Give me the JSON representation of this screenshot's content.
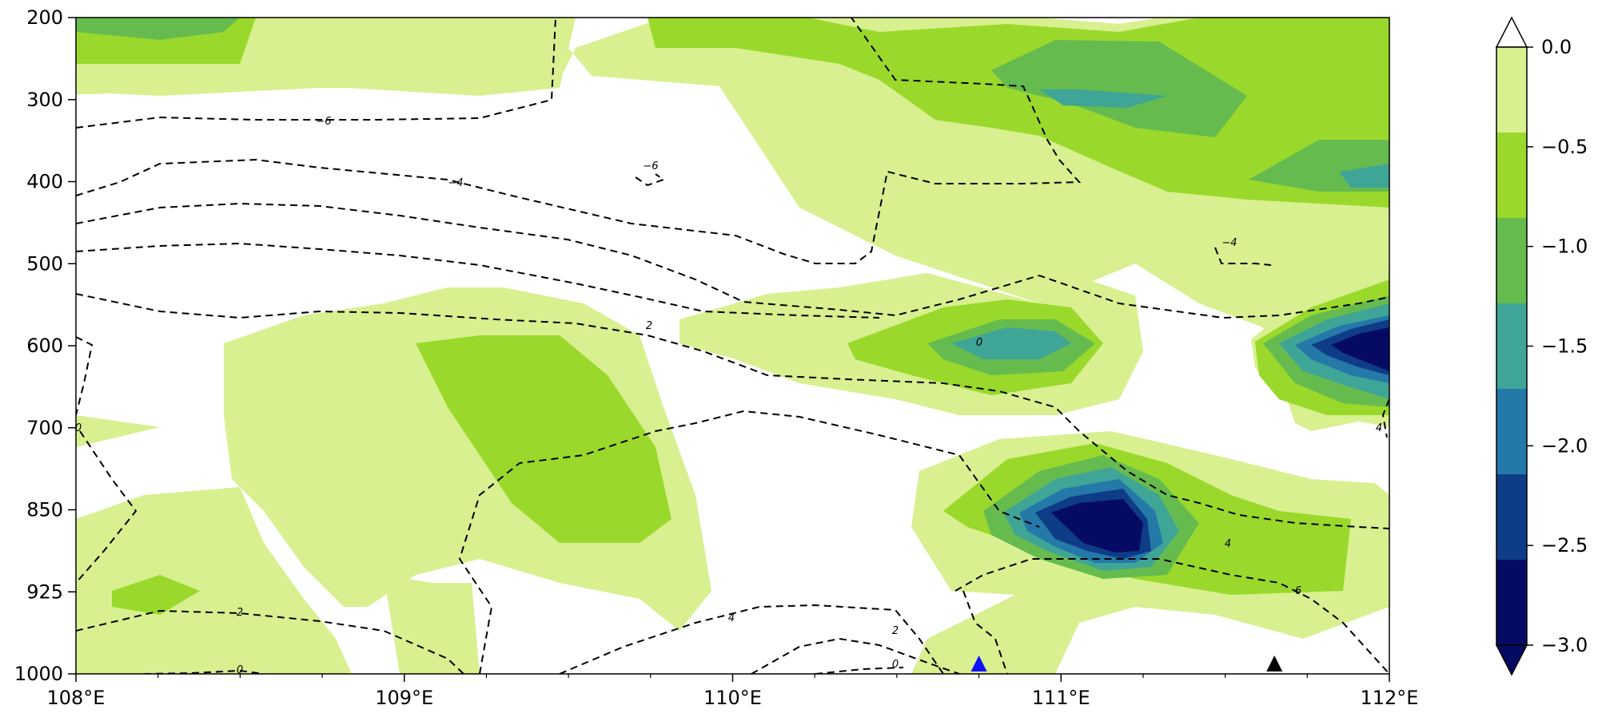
{
  "chart_data": {
    "type": "heatmap",
    "title": "",
    "xlabel": "",
    "ylabel": "",
    "x_axis": {
      "range": [
        108,
        112
      ],
      "ticks": [
        108,
        109,
        110,
        111,
        112
      ],
      "tick_labels": [
        "108°E",
        "109°E",
        "110°E",
        "111°E",
        "112°E"
      ]
    },
    "y_axis": {
      "scale": "category",
      "inverted": true,
      "tick_labels": [
        "200",
        "300",
        "400",
        "500",
        "600",
        "700",
        "850",
        "925",
        "1000"
      ]
    },
    "filled_contours": {
      "levels": [
        0.0,
        -0.5,
        -1.0,
        -1.5,
        -2.0,
        -2.5,
        -3.0
      ],
      "colors": [
        "#d8f08f",
        "#9ad92b",
        "#66bb4f",
        "#3fa596",
        "#2479a8",
        "#0f3c86",
        "#050b63"
      ],
      "extend": "both",
      "colorbar_tick_labels": [
        "0.0",
        "−0.5",
        "−1.0",
        "−1.5",
        "−2.0",
        "−2.5",
        "−3.0"
      ],
      "colorbar_position": "right"
    },
    "line_contours": {
      "style": "dashed",
      "color": "#000000",
      "labels": [
        "−6",
        "−6",
        "−4",
        "−4",
        "2",
        "0",
        "0",
        "4",
        "6",
        "2",
        "4",
        "2",
        "0",
        "0",
        "4"
      ]
    },
    "markers": [
      {
        "name": "blue-triangle",
        "x": 110.75,
        "y_label": "1000",
        "color": "#1010ff"
      },
      {
        "name": "black-triangle",
        "x": 111.65,
        "y_label": "1000",
        "color": "#000000"
      }
    ],
    "grid": false
  }
}
